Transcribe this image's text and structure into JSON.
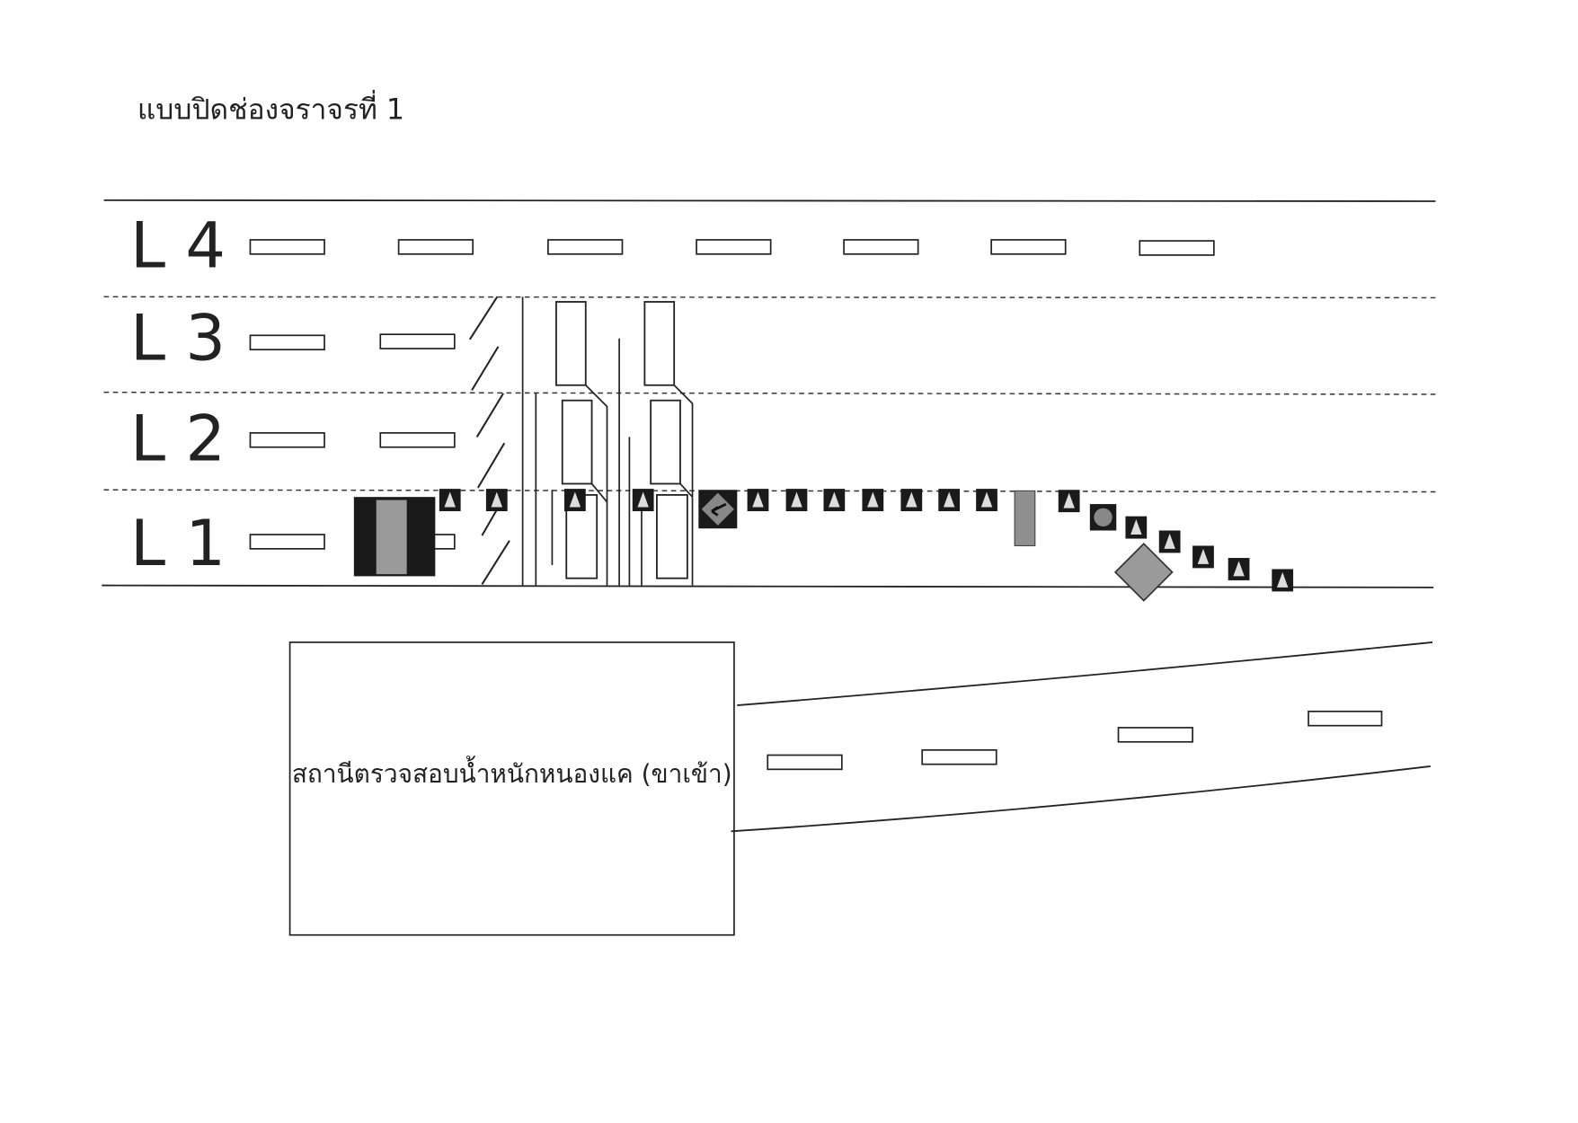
{
  "title": "แบบปิดช่องจราจรที่ 1",
  "lanes": [
    {
      "label": "L 4"
    },
    {
      "label": "L 3"
    },
    {
      "label": "L 2"
    },
    {
      "label": "L 1"
    }
  ],
  "station": {
    "label": "สถานีตรวจสอบน้ำหนักหนองแค (ขาเข้า)"
  },
  "colors": {
    "ink": "#222222",
    "sign_fill": "#1a1a1a",
    "sign_grey": "#9a9a9a"
  },
  "icons": [
    "traffic-cone-icon",
    "arrow-warning-sign-icon",
    "speed-limit-sign-icon",
    "diamond-warning-sign-icon",
    "truck-sign-icon"
  ]
}
